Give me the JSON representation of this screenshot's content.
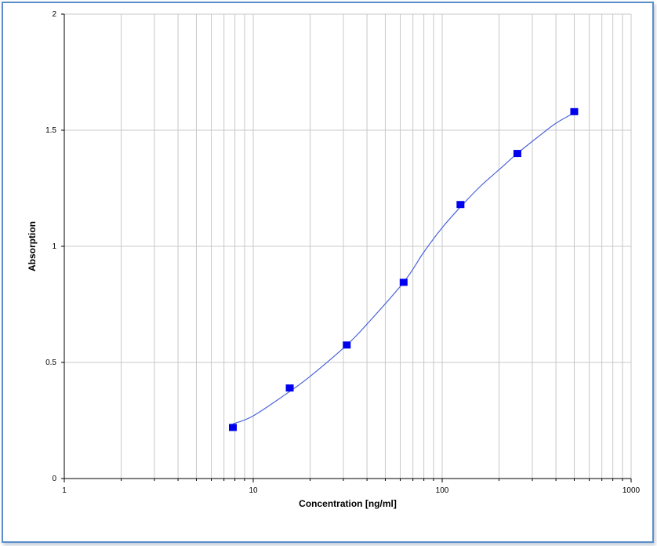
{
  "chart_data": {
    "type": "scatter",
    "title": "",
    "xlabel": "Concentration [ng/ml]",
    "ylabel": "Absorption",
    "x_scale": "log",
    "xlim": [
      1,
      1000
    ],
    "ylim": [
      0,
      2
    ],
    "x_tick_labels": [
      "1",
      "10",
      "100",
      "1000"
    ],
    "y_tick_labels": [
      "0",
      "0.5",
      "1",
      "1.5",
      "2"
    ],
    "grid": true,
    "legend": "none",
    "marker_color": "#0000ee",
    "curve_color": "#4a63d8",
    "series": [
      {
        "points": [
          {
            "x": 7.8,
            "y": 0.22
          },
          {
            "x": 15.6,
            "y": 0.39
          },
          {
            "x": 31.25,
            "y": 0.575
          },
          {
            "x": 62.5,
            "y": 0.845
          },
          {
            "x": 125,
            "y": 1.18
          },
          {
            "x": 250,
            "y": 1.4
          },
          {
            "x": 500,
            "y": 1.58
          }
        ],
        "fit_curve": [
          {
            "x": 7.8,
            "y": 0.235
          },
          {
            "x": 10,
            "y": 0.27
          },
          {
            "x": 15.6,
            "y": 0.375
          },
          {
            "x": 20,
            "y": 0.44
          },
          {
            "x": 31.25,
            "y": 0.575
          },
          {
            "x": 40,
            "y": 0.665
          },
          {
            "x": 62.5,
            "y": 0.845
          },
          {
            "x": 80,
            "y": 0.975
          },
          {
            "x": 100,
            "y": 1.08
          },
          {
            "x": 125,
            "y": 1.17
          },
          {
            "x": 160,
            "y": 1.26
          },
          {
            "x": 200,
            "y": 1.33
          },
          {
            "x": 250,
            "y": 1.4
          },
          {
            "x": 320,
            "y": 1.47
          },
          {
            "x": 400,
            "y": 1.53
          },
          {
            "x": 500,
            "y": 1.575
          }
        ]
      }
    ]
  }
}
